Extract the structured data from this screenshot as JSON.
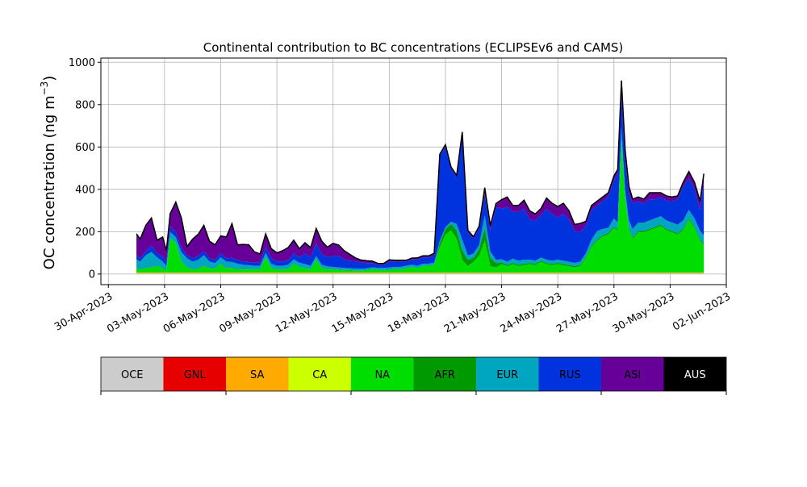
{
  "chart_data": {
    "type": "area",
    "stacked": true,
    "title": "Continental contribution to BC concentrations (ECLIPSEv6 and CAMS)",
    "xlabel": "",
    "ylabel_main": "OC concentration (ng m",
    "ylabel_sup": "−3",
    "ylabel_close": ")",
    "ylim": [
      -50,
      1020
    ],
    "yticks": [
      0,
      200,
      400,
      600,
      800,
      1000
    ],
    "xlim_day": [
      -0.4,
      33.0
    ],
    "xticks_day": [
      0,
      3,
      6,
      9,
      12,
      15,
      18,
      21,
      24,
      27,
      30,
      33
    ],
    "xtick_labels": [
      "30-Apr-2023",
      "03-May-2023",
      "06-May-2023",
      "09-May-2023",
      "12-May-2023",
      "15-May-2023",
      "18-May-2023",
      "21-May-2023",
      "24-May-2023",
      "27-May-2023",
      "30-May-2023",
      "02-Jun-2023"
    ],
    "grid": true,
    "x_day": [
      1.5,
      1.7,
      2.0,
      2.3,
      2.6,
      2.9,
      3.1,
      3.3,
      3.6,
      3.9,
      4.2,
      4.5,
      4.8,
      5.1,
      5.4,
      5.7,
      6.0,
      6.3,
      6.6,
      6.9,
      7.2,
      7.5,
      7.8,
      8.1,
      8.4,
      8.7,
      9.0,
      9.3,
      9.6,
      9.9,
      10.2,
      10.5,
      10.8,
      11.1,
      11.4,
      11.7,
      12.0,
      12.3,
      12.6,
      12.9,
      13.2,
      13.5,
      13.8,
      14.1,
      14.4,
      14.7,
      15.0,
      15.3,
      15.6,
      15.9,
      16.2,
      16.5,
      16.8,
      17.1,
      17.4,
      17.7,
      18.0,
      18.3,
      18.6,
      18.9,
      19.2,
      19.5,
      19.8,
      20.1,
      20.4,
      20.7,
      21.0,
      21.3,
      21.6,
      21.9,
      22.2,
      22.5,
      22.8,
      23.1,
      23.4,
      23.7,
      24.0,
      24.3,
      24.6,
      24.9,
      25.2,
      25.5,
      25.8,
      26.1,
      26.4,
      26.7,
      27.0,
      27.2,
      27.4,
      27.6,
      27.8,
      28.0,
      28.3,
      28.6,
      28.9,
      29.2,
      29.5,
      29.8,
      30.1,
      30.4,
      30.7,
      31.0,
      31.3,
      31.6,
      31.8
    ],
    "series": [
      {
        "name": "OCE",
        "color": "#cccccc",
        "values": [
          3,
          3,
          3,
          3,
          3,
          3,
          3,
          3,
          3,
          3,
          3,
          3,
          3,
          3,
          3,
          3,
          3,
          3,
          3,
          3,
          3,
          3,
          3,
          3,
          3,
          3,
          3,
          3,
          3,
          3,
          3,
          3,
          3,
          3,
          3,
          3,
          3,
          3,
          3,
          3,
          3,
          3,
          3,
          3,
          3,
          3,
          3,
          3,
          3,
          3,
          3,
          3,
          3,
          3,
          3,
          3,
          3,
          3,
          3,
          3,
          3,
          3,
          3,
          3,
          3,
          3,
          3,
          3,
          3,
          3,
          3,
          3,
          3,
          3,
          3,
          3,
          3,
          3,
          3,
          3,
          3,
          3,
          3,
          3,
          3,
          3,
          3,
          3,
          3,
          3,
          3,
          3,
          3,
          3,
          3,
          3,
          3,
          3,
          3,
          3,
          3,
          3,
          3,
          3,
          3
        ]
      },
      {
        "name": "GNL",
        "color": "#e60000",
        "values": [
          1,
          1,
          1,
          1,
          1,
          1,
          1,
          1,
          1,
          1,
          1,
          1,
          1,
          1,
          1,
          1,
          1,
          1,
          1,
          1,
          1,
          1,
          1,
          1,
          1,
          1,
          1,
          1,
          1,
          1,
          1,
          1,
          1,
          1,
          1,
          1,
          1,
          1,
          1,
          1,
          1,
          1,
          1,
          1,
          1,
          1,
          1,
          1,
          1,
          1,
          1,
          1,
          1,
          1,
          1,
          1,
          1,
          1,
          1,
          1,
          1,
          1,
          1,
          1,
          1,
          1,
          1,
          1,
          1,
          1,
          1,
          1,
          1,
          1,
          1,
          1,
          1,
          1,
          1,
          1,
          1,
          1,
          1,
          1,
          1,
          1,
          1,
          1,
          1,
          1,
          1,
          1,
          1,
          1,
          1,
          1,
          1,
          1,
          1,
          1,
          1,
          1,
          1,
          1,
          1
        ]
      },
      {
        "name": "SA",
        "color": "#ffaa00",
        "values": [
          1,
          1,
          1,
          1,
          1,
          1,
          1,
          1,
          1,
          1,
          1,
          1,
          1,
          1,
          1,
          1,
          1,
          1,
          1,
          1,
          1,
          1,
          1,
          1,
          1,
          1,
          1,
          1,
          1,
          1,
          1,
          1,
          1,
          1,
          1,
          1,
          1,
          1,
          1,
          1,
          1,
          1,
          1,
          1,
          1,
          1,
          1,
          1,
          1,
          1,
          1,
          1,
          1,
          1,
          1,
          1,
          1,
          1,
          1,
          1,
          1,
          1,
          1,
          1,
          1,
          1,
          1,
          1,
          1,
          1,
          1,
          1,
          1,
          1,
          1,
          1,
          1,
          1,
          1,
          1,
          1,
          1,
          1,
          1,
          1,
          1,
          1,
          1,
          1,
          1,
          1,
          1,
          1,
          1,
          1,
          1,
          1,
          1,
          1,
          1,
          1,
          1,
          1,
          1,
          1
        ]
      },
      {
        "name": "CA",
        "color": "#ccff00",
        "values": [
          2,
          2,
          2,
          2,
          2,
          2,
          2,
          2,
          2,
          2,
          2,
          2,
          2,
          2,
          2,
          2,
          2,
          2,
          2,
          2,
          2,
          2,
          2,
          2,
          2,
          2,
          2,
          2,
          2,
          2,
          2,
          2,
          2,
          2,
          2,
          2,
          2,
          2,
          2,
          2,
          2,
          2,
          2,
          2,
          2,
          2,
          2,
          2,
          2,
          2,
          2,
          2,
          2,
          2,
          2,
          2,
          2,
          2,
          2,
          2,
          2,
          2,
          2,
          2,
          2,
          2,
          2,
          2,
          2,
          2,
          2,
          2,
          2,
          2,
          2,
          2,
          2,
          2,
          2,
          2,
          2,
          2,
          2,
          2,
          2,
          2,
          2,
          2,
          2,
          2,
          2,
          2,
          2,
          2,
          2,
          2,
          2,
          2,
          2,
          2,
          2,
          2,
          2,
          2,
          2
        ]
      },
      {
        "name": "NA",
        "color": "#00dd00",
        "values": [
          20,
          15,
          20,
          25,
          30,
          20,
          10,
          160,
          140,
          50,
          25,
          15,
          18,
          30,
          20,
          18,
          40,
          20,
          20,
          15,
          15,
          15,
          15,
          15,
          70,
          20,
          15,
          15,
          15,
          40,
          25,
          20,
          15,
          60,
          20,
          15,
          15,
          12,
          10,
          10,
          8,
          8,
          10,
          15,
          12,
          10,
          12,
          15,
          15,
          20,
          25,
          20,
          30,
          30,
          35,
          120,
          180,
          200,
          160,
          60,
          30,
          50,
          80,
          150,
          30,
          25,
          40,
          30,
          40,
          30,
          35,
          40,
          35,
          50,
          40,
          35,
          40,
          35,
          30,
          25,
          30,
          70,
          120,
          150,
          170,
          180,
          210,
          200,
          620,
          350,
          200,
          160,
          190,
          190,
          200,
          210,
          220,
          200,
          190,
          180,
          200,
          250,
          210,
          150,
          130
        ]
      },
      {
        "name": "AFR",
        "color": "#009900",
        "values": [
          2,
          2,
          2,
          2,
          2,
          2,
          2,
          2,
          2,
          2,
          2,
          2,
          2,
          2,
          2,
          2,
          2,
          2,
          2,
          2,
          2,
          2,
          2,
          2,
          2,
          2,
          2,
          2,
          2,
          2,
          2,
          2,
          2,
          2,
          2,
          2,
          2,
          2,
          2,
          2,
          2,
          2,
          2,
          2,
          2,
          2,
          2,
          2,
          2,
          2,
          2,
          2,
          2,
          2,
          2,
          20,
          25,
          30,
          40,
          45,
          30,
          20,
          30,
          60,
          40,
          20,
          8,
          6,
          6,
          6,
          6,
          6,
          6,
          6,
          6,
          6,
          6,
          6,
          6,
          6,
          6,
          6,
          6,
          6,
          6,
          6,
          6,
          6,
          6,
          6,
          6,
          6,
          6,
          6,
          6,
          6,
          6,
          6,
          6,
          6,
          6,
          6,
          6,
          6,
          6
        ]
      },
      {
        "name": "EUR",
        "color": "#00a5c0",
        "values": [
          40,
          35,
          60,
          70,
          40,
          30,
          20,
          30,
          25,
          45,
          40,
          35,
          40,
          50,
          30,
          25,
          30,
          30,
          28,
          25,
          20,
          18,
          15,
          15,
          20,
          20,
          15,
          15,
          20,
          20,
          20,
          18,
          15,
          15,
          15,
          12,
          10,
          10,
          10,
          8,
          8,
          8,
          8,
          8,
          8,
          10,
          10,
          10,
          10,
          10,
          10,
          10,
          10,
          10,
          10,
          10,
          10,
          10,
          30,
          50,
          20,
          20,
          20,
          60,
          30,
          15,
          15,
          15,
          20,
          20,
          20,
          15,
          15,
          15,
          15,
          15,
          15,
          15,
          15,
          15,
          15,
          15,
          30,
          40,
          30,
          25,
          40,
          30,
          60,
          30,
          40,
          40,
          40,
          40,
          40,
          40,
          40,
          40,
          40,
          40,
          40,
          40,
          40,
          40,
          40
        ]
      },
      {
        "name": "RUS",
        "color": "#0033dd",
        "values": [
          20,
          15,
          20,
          30,
          20,
          25,
          20,
          25,
          25,
          20,
          15,
          15,
          20,
          20,
          15,
          15,
          20,
          15,
          20,
          18,
          15,
          15,
          15,
          15,
          30,
          25,
          20,
          20,
          20,
          30,
          25,
          50,
          40,
          60,
          50,
          45,
          50,
          55,
          40,
          35,
          35,
          30,
          25,
          20,
          15,
          15,
          30,
          25,
          25,
          20,
          25,
          30,
          30,
          30,
          35,
          400,
          380,
          250,
          220,
          500,
          110,
          70,
          80,
          100,
          100,
          250,
          240,
          260,
          220,
          230,
          240,
          190,
          190,
          200,
          240,
          220,
          200,
          220,
          200,
          150,
          140,
          130,
          140,
          120,
          130,
          150,
          180,
          230,
          150,
          150,
          130,
          120,
          100,
          90,
          100,
          90,
          90,
          95,
          100,
          120,
          160,
          150,
          140,
          100,
          250
        ]
      },
      {
        "name": "ASI",
        "color": "#660099",
        "values": [
          100,
          90,
          120,
          130,
          60,
          90,
          50,
          60,
          140,
          140,
          40,
          90,
          100,
          120,
          80,
          70,
          80,
          100,
          160,
          70,
          80,
          80,
          50,
          40,
          60,
          45,
          40,
          50,
          60,
          60,
          40,
          50,
          45,
          70,
          60,
          45,
          60,
          50,
          40,
          30,
          15,
          10,
          10,
          8,
          5,
          5,
          5,
          5,
          5,
          5,
          5,
          6,
          6,
          6,
          8,
          8,
          8,
          8,
          8,
          8,
          8,
          8,
          8,
          30,
          20,
          15,
          40,
          45,
          30,
          30,
          40,
          40,
          30,
          30,
          50,
          50,
          50,
          50,
          40,
          30,
          40,
          20,
          20,
          20,
          20,
          15,
          20,
          20,
          70,
          40,
          30,
          20,
          20,
          20,
          30,
          30,
          20,
          20,
          20,
          15,
          20,
          30,
          30,
          40,
          40
        ]
      },
      {
        "name": "AUS",
        "color": "#000000",
        "values": [
          1,
          1,
          1,
          1,
          1,
          1,
          1,
          1,
          1,
          1,
          1,
          1,
          1,
          1,
          1,
          1,
          1,
          1,
          1,
          1,
          1,
          1,
          1,
          1,
          1,
          1,
          1,
          1,
          1,
          1,
          1,
          1,
          1,
          1,
          1,
          1,
          1,
          1,
          1,
          1,
          1,
          1,
          1,
          1,
          1,
          1,
          1,
          1,
          1,
          1,
          1,
          1,
          1,
          1,
          1,
          1,
          1,
          1,
          1,
          1,
          1,
          1,
          1,
          1,
          1,
          1,
          1,
          1,
          1,
          1,
          1,
          1,
          1,
          1,
          1,
          1,
          1,
          1,
          1,
          1,
          1,
          1,
          1,
          1,
          1,
          1,
          1,
          1,
          1,
          1,
          1,
          1,
          1,
          1,
          1,
          1,
          1,
          1,
          1,
          1,
          1,
          1,
          1,
          1,
          1
        ]
      }
    ],
    "legend_labels": [
      "OCE",
      "GNL",
      "SA",
      "CA",
      "NA",
      "AFR",
      "EUR",
      "RUS",
      "ASI",
      "AUS"
    ],
    "legend_text_colors": [
      "#000000",
      "#000000",
      "#000000",
      "#000000",
      "#000000",
      "#000000",
      "#000000",
      "#000000",
      "#000000",
      "#ffffff"
    ],
    "legend_placement": "bottom colorbar"
  }
}
